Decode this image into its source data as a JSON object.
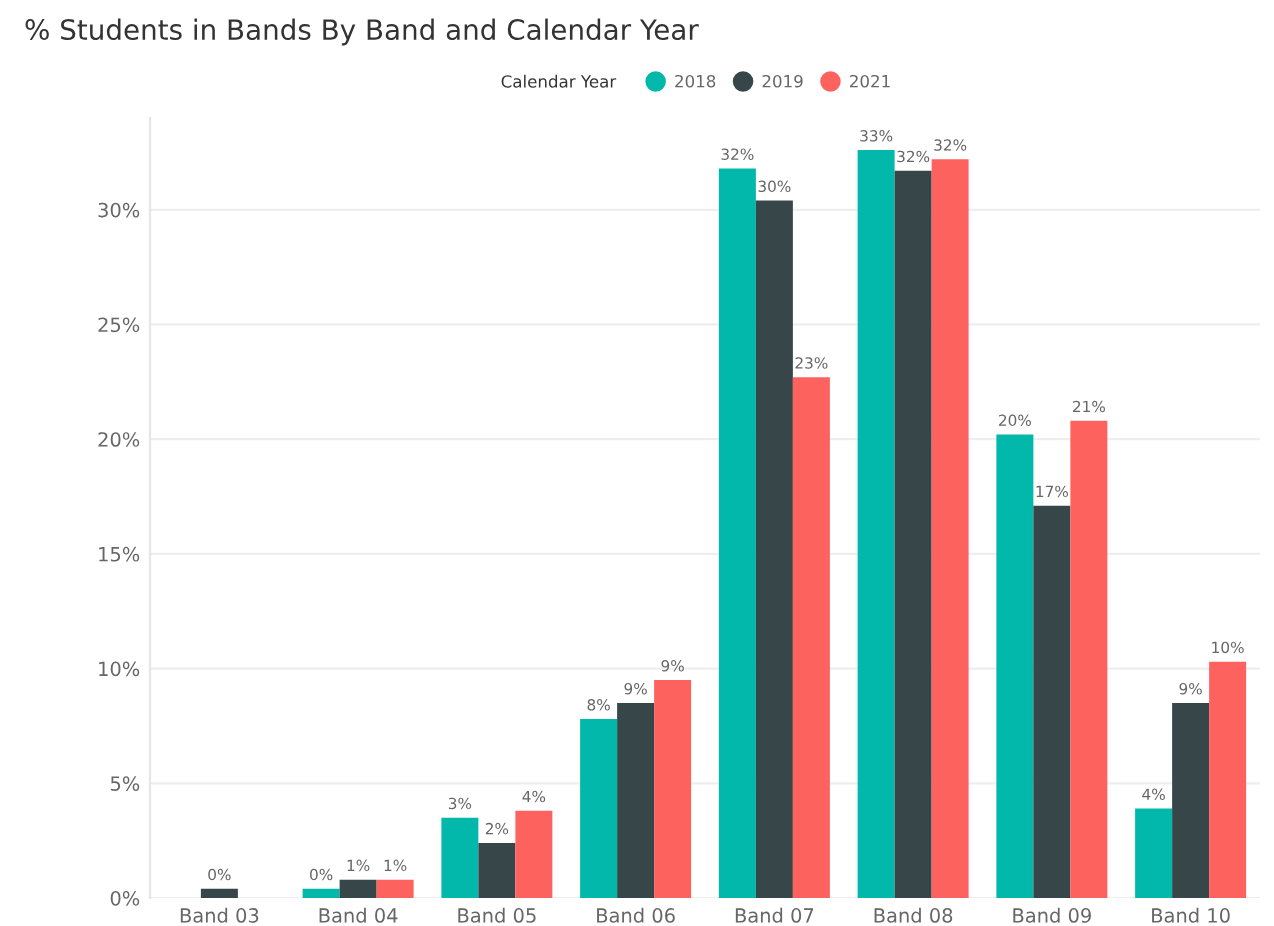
{
  "chart_data": {
    "type": "bar",
    "title": "% Students in Bands By Band and Calendar Year",
    "legend_title": "Calendar Year",
    "categories": [
      "Band 03",
      "Band 04",
      "Band 05",
      "Band 06",
      "Band 07",
      "Band 08",
      "Band 09",
      "Band 10"
    ],
    "series": [
      {
        "name": "2018",
        "color": "#01b8aa",
        "values": [
          null,
          0.4,
          3.5,
          7.8,
          31.8,
          32.6,
          20.2,
          3.9
        ],
        "value_labels": [
          null,
          "0%",
          "3%",
          "8%",
          "32%",
          "33%",
          "20%",
          "4%"
        ]
      },
      {
        "name": "2019",
        "color": "#374649",
        "values": [
          0.4,
          0.8,
          2.4,
          8.5,
          30.4,
          31.7,
          17.1,
          8.5
        ],
        "value_labels": [
          "0%",
          "1%",
          "2%",
          "9%",
          "30%",
          "32%",
          "17%",
          "9%"
        ]
      },
      {
        "name": "2021",
        "color": "#fd625e",
        "values": [
          null,
          0.8,
          3.8,
          9.5,
          22.7,
          32.2,
          20.8,
          10.3
        ],
        "value_labels": [
          null,
          "1%",
          "4%",
          "9%",
          "23%",
          "32%",
          "21%",
          "10%"
        ]
      }
    ],
    "ylim": [
      0,
      34
    ],
    "yticks": [
      {
        "value": 0,
        "label": "0%"
      },
      {
        "value": 5,
        "label": "5%"
      },
      {
        "value": 10,
        "label": "10%"
      },
      {
        "value": 15,
        "label": "15%"
      },
      {
        "value": 20,
        "label": "20%"
      },
      {
        "value": 25,
        "label": "25%"
      },
      {
        "value": 30,
        "label": "30%"
      }
    ],
    "grid": "y",
    "legend": "top"
  }
}
